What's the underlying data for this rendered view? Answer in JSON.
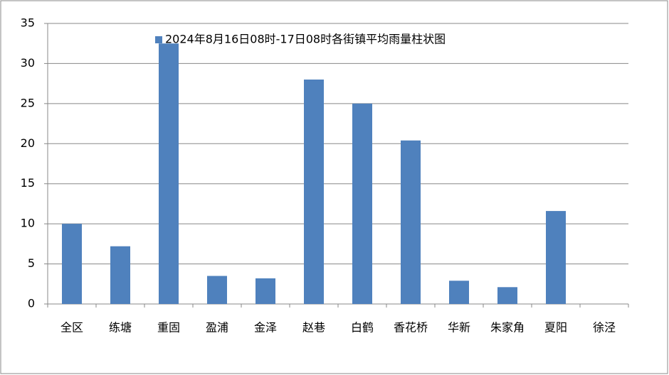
{
  "chart_data": {
    "type": "bar",
    "categories": [
      "全区",
      "练塘",
      "重固",
      "盈浦",
      "金泽",
      "赵巷",
      "白鹤",
      "香花桥",
      "华新",
      "朱家角",
      "夏阳",
      "徐泾"
    ],
    "series": [
      {
        "name": "2024年8月16日08时-17日08时各街镇平均雨量柱状图",
        "color": "#4f81bd",
        "values": [
          10,
          7.2,
          32.5,
          3.5,
          3.2,
          28,
          25,
          20.4,
          2.9,
          2.1,
          11.6,
          0
        ]
      }
    ],
    "ylim": [
      0,
      35
    ],
    "yticks": [
      0,
      5,
      10,
      15,
      20,
      25,
      30,
      35
    ],
    "grid": true,
    "legend": "top"
  }
}
